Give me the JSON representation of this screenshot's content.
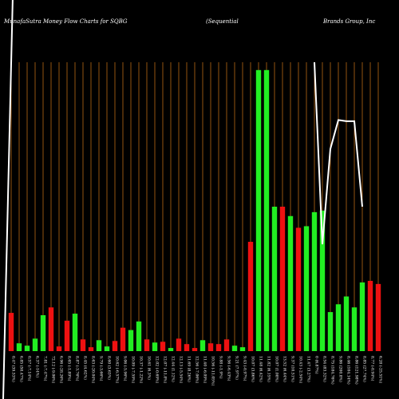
{
  "chart_data": {
    "type": "bar",
    "title_parts": [
      "MunafaSutra  Money Flow  Charts for SQBG",
      "(Sequential",
      "Brands Group,  Inc"
    ],
    "bar_up_color": "#22ee22",
    "bar_down_color": "#ee1111",
    "grid_color": "#b86a14",
    "line_color": "#ffffff",
    "categories": [
      "0.47 (39.53%)",
      "6.85 (50.47%)",
      "0.57 (-7.14%)",
      "6.37 (-14%)",
      "7.81 (-7.47%)",
      "72.12 (-9.06%)",
      "6.96 (-28.26%)",
      "8.65 (-1.89%)",
      "8.87 (-3.76%)",
      "8.45 (4.62%)",
      "8.63 (-20.04%)",
      "9.79 (-3.66%)",
      "8.60 (3.63%)",
      "10.62 (-6.57%)",
      "9.06 (-5.96%)",
      "10.09 (-7.59%)",
      "10.37 (-1.22%)",
      "10.61 (6.3%)",
      "12.02 (-0.69%)",
      "12.07 (-11.8%)",
      "12.44 (1.12%)",
      "12.13 (-5.54%)",
      "11.69 (8.26%)",
      "12.56 (-7.06%)",
      "11.40 (-6.09%)",
      "10.56 (-11.05%)",
      "9.88 (-1.9%)",
      "9.56 (-6.43%)",
      "9.21 (7.97%)",
      "9.43 (-0.97%)",
      "10.07 (3.86%)",
      "11.48 (6.42%)",
      "11.82 (6.15%)",
      "10.07 (1.08%)",
      "13.52 (6.44%)",
      "9.37 (10.51%)",
      "10.43 (-2.54%)",
      "11.47 (3.27%)",
      "0 (6.87%)",
      "8.54 (83.32%)",
      "8.75 (184.76%)",
      "9.86 (200.8%)",
      "8.46 (104.14%)",
      "8.86 (121.98%)",
      "8.85 (27.74%)",
      "8.77 (-0.94%)",
      "6.28 (-25.51%)"
    ],
    "colors": [
      "red",
      "green",
      "green",
      "green",
      "green",
      "red",
      "red",
      "red",
      "green",
      "red",
      "red",
      "green",
      "green",
      "red",
      "red",
      "green",
      "green",
      "red",
      "green",
      "red",
      "green",
      "red",
      "red",
      "red",
      "green",
      "red",
      "red",
      "red",
      "green",
      "green",
      "red",
      "green",
      "green",
      "green",
      "red",
      "green",
      "red",
      "green",
      "green",
      "green",
      "green",
      "green",
      "green",
      "green",
      "green",
      "red",
      "red"
    ],
    "values": [
      49,
      10,
      7,
      16,
      46,
      56,
      6,
      39,
      48,
      15,
      5,
      14,
      6,
      13,
      30,
      27,
      38,
      15,
      11,
      12,
      4,
      16,
      9,
      4,
      14,
      10,
      9,
      15,
      7,
      5,
      140,
      360,
      360,
      185,
      185,
      173,
      158,
      160,
      178,
      180,
      50,
      60,
      70,
      56,
      88,
      90,
      86
    ],
    "line": [
      0,
      0,
      0,
      0,
      0,
      0,
      0,
      0,
      0,
      0,
      0,
      0,
      0,
      0,
      0,
      0,
      0,
      0,
      0,
      0,
      0,
      0,
      0,
      0,
      0,
      0,
      0,
      0,
      0,
      0,
      0,
      0,
      0,
      0,
      0,
      0,
      0,
      0,
      0,
      0,
      0,
      0,
      0,
      0,
      0,
      0,
      0
    ],
    "line_points": [
      {
        "i": 38,
        "v": 500
      },
      {
        "i": 39,
        "v": 185
      },
      {
        "i": 40,
        "v": 350
      },
      {
        "i": 41,
        "v": 400
      },
      {
        "i": 42,
        "v": 398
      },
      {
        "i": 43,
        "v": 398
      },
      {
        "i": 44,
        "v": 250
      }
    ],
    "ylim": [
      0,
      370
    ]
  }
}
